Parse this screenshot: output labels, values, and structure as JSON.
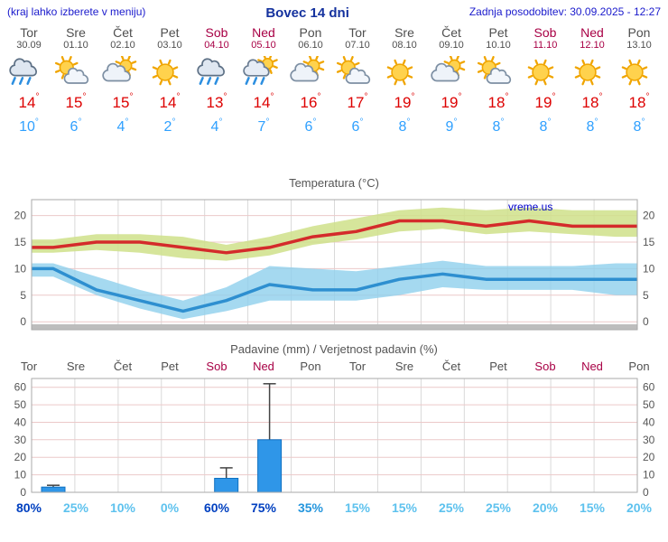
{
  "header": {
    "hint": "(kraj lahko izberete v meniju)",
    "title": "Bovec 14 dni",
    "updated": "Zadnja posodobitev: 30.09.2025 - 12:27"
  },
  "watermark": "vreme.us",
  "days": [
    {
      "name": "Tor",
      "date": "30.09",
      "weekend": false,
      "icon": "rain",
      "tmax": 14,
      "tmin": 10
    },
    {
      "name": "Sre",
      "date": "01.10",
      "weekend": false,
      "icon": "sun-cloud",
      "tmax": 15,
      "tmin": 6
    },
    {
      "name": "Čet",
      "date": "02.10",
      "weekend": false,
      "icon": "cloud-sun",
      "tmax": 15,
      "tmin": 4
    },
    {
      "name": "Pet",
      "date": "03.10",
      "weekend": false,
      "icon": "sunny",
      "tmax": 14,
      "tmin": 2
    },
    {
      "name": "Sob",
      "date": "04.10",
      "weekend": true,
      "icon": "rain",
      "tmax": 13,
      "tmin": 4
    },
    {
      "name": "Ned",
      "date": "05.10",
      "weekend": true,
      "icon": "sun-rain",
      "tmax": 14,
      "tmin": 7
    },
    {
      "name": "Pon",
      "date": "06.10",
      "weekend": false,
      "icon": "cloud-sun",
      "tmax": 16,
      "tmin": 6
    },
    {
      "name": "Tor",
      "date": "07.10",
      "weekend": false,
      "icon": "sun-cloud",
      "tmax": 17,
      "tmin": 6
    },
    {
      "name": "Sre",
      "date": "08.10",
      "weekend": false,
      "icon": "sunny",
      "tmax": 19,
      "tmin": 8
    },
    {
      "name": "Čet",
      "date": "09.10",
      "weekend": false,
      "icon": "cloud-sun",
      "tmax": 19,
      "tmin": 9
    },
    {
      "name": "Pet",
      "date": "10.10",
      "weekend": false,
      "icon": "sun-cloud",
      "tmax": 18,
      "tmin": 8
    },
    {
      "name": "Sob",
      "date": "11.10",
      "weekend": true,
      "icon": "sunny",
      "tmax": 19,
      "tmin": 8
    },
    {
      "name": "Ned",
      "date": "12.10",
      "weekend": true,
      "icon": "sunny",
      "tmax": 18,
      "tmin": 8
    },
    {
      "name": "Pon",
      "date": "13.10",
      "weekend": false,
      "icon": "sunny",
      "tmax": 18,
      "tmin": 8
    }
  ],
  "chart_data": [
    {
      "type": "area",
      "title": "Temperatura (°C)",
      "categories": [
        "Tor",
        "Sre",
        "Čet",
        "Pet",
        "Sob",
        "Ned",
        "Pon",
        "Tor",
        "Sre",
        "Čet",
        "Pet",
        "Sob",
        "Ned",
        "Pon"
      ],
      "ylim": [
        -1.5,
        23
      ],
      "yticks": [
        0,
        5,
        10,
        15,
        20
      ],
      "series": [
        {
          "name": "temp-max",
          "color": "#d42b2b",
          "values": [
            14,
            15,
            15,
            14,
            13,
            14,
            16,
            17,
            19,
            19,
            18,
            19,
            18,
            18
          ]
        },
        {
          "name": "temp-max-range-hi",
          "values": [
            15.5,
            16.5,
            16.5,
            16,
            14.5,
            16,
            18,
            19.5,
            21,
            21.5,
            21,
            21.5,
            21,
            21
          ]
        },
        {
          "name": "temp-max-range-lo",
          "values": [
            13,
            13.5,
            13,
            12,
            11.5,
            12.5,
            14.5,
            15.5,
            17,
            17.5,
            16.5,
            17,
            16.5,
            16
          ]
        },
        {
          "name": "temp-min",
          "color": "#2e8fd0",
          "values": [
            10,
            6,
            4,
            2,
            4,
            7,
            6,
            6,
            8,
            9,
            8,
            8,
            8,
            8
          ]
        },
        {
          "name": "temp-min-range-hi",
          "values": [
            11,
            8.5,
            6,
            4,
            6.5,
            10.5,
            10,
            9.5,
            10.5,
            11.5,
            10.5,
            10.5,
            10.5,
            11
          ]
        },
        {
          "name": "temp-min-range-lo",
          "values": [
            8.5,
            5,
            2.5,
            0.5,
            2,
            4,
            4,
            4,
            5,
            6.5,
            6,
            6,
            6,
            5
          ]
        }
      ]
    },
    {
      "type": "bar",
      "title": "Padavine (mm) / Verjetnost padavin (%)",
      "categories": [
        "Tor",
        "Sre",
        "Čet",
        "Pet",
        "Sob",
        "Ned",
        "Pon",
        "Tor",
        "Sre",
        "Čet",
        "Pet",
        "Sob",
        "Ned",
        "Pon"
      ],
      "ylim": [
        0,
        65
      ],
      "yticks": [
        0,
        10,
        20,
        30,
        40,
        50,
        60
      ],
      "values": [
        3,
        0,
        0,
        0,
        8,
        30,
        0,
        0,
        0,
        0,
        0,
        0,
        0,
        0
      ],
      "whisker_hi": [
        4,
        0,
        0,
        0,
        14,
        62,
        0,
        0,
        0,
        0,
        0,
        0,
        0,
        0
      ],
      "probabilities": [
        80,
        25,
        10,
        0,
        60,
        75,
        35,
        15,
        15,
        25,
        25,
        20,
        15,
        20
      ]
    }
  ]
}
